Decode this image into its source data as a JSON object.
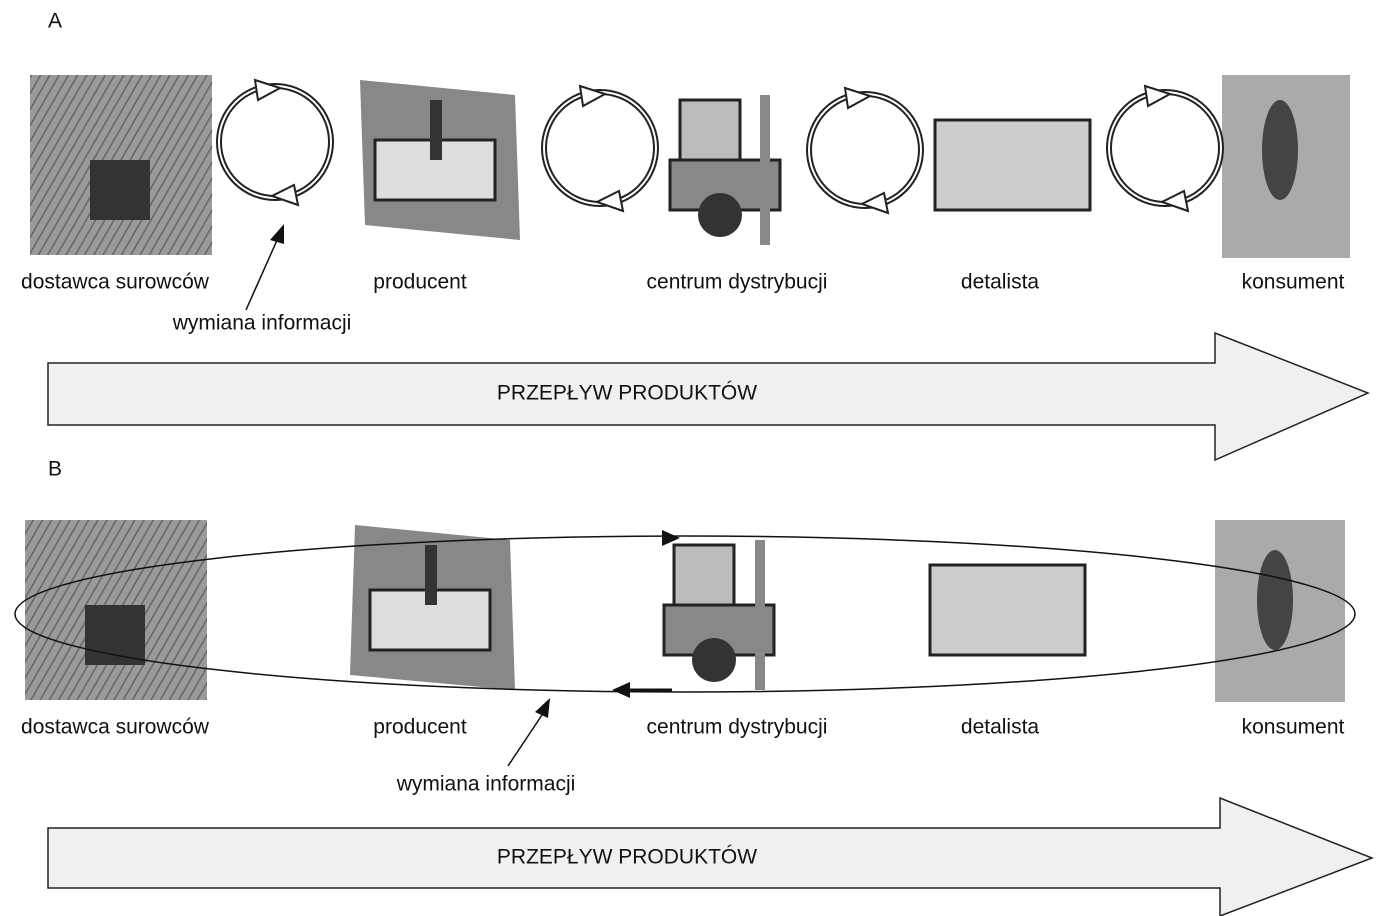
{
  "panels": [
    {
      "label": "A",
      "nodes": [
        {
          "label": "dostawca surowców"
        },
        {
          "label": "producent"
        },
        {
          "label": "centrum dystrybucji"
        },
        {
          "label": "detalista"
        },
        {
          "label": "konsument"
        }
      ],
      "info_label": "wymiana informacji",
      "flow_label": "PRZEPŁYW PRODUKTÓW"
    },
    {
      "label": "B",
      "nodes": [
        {
          "label": "dostawca surowców"
        },
        {
          "label": "producent"
        },
        {
          "label": "centrum dystrybucji"
        },
        {
          "label": "detalista"
        },
        {
          "label": "konsument"
        }
      ],
      "info_label": "wymiana informacji",
      "flow_label": "PRZEPŁYW PRODUKTÓW"
    }
  ]
}
